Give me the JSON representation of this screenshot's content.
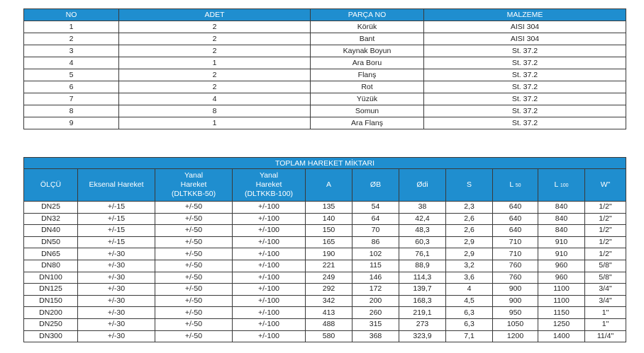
{
  "colors": {
    "header_bg": "#1f8ecf",
    "header_text": "#ffffff",
    "border": "#3a3a3a"
  },
  "parts_table": {
    "headers": [
      "NO",
      "ADET",
      "PARÇA NO",
      "MALZEME"
    ],
    "rows": [
      [
        "1",
        "2",
        "Körük",
        "AISI 304"
      ],
      [
        "2",
        "2",
        "Bant",
        "AISI 304"
      ],
      [
        "3",
        "2",
        "Kaynak Boyun",
        "St. 37.2"
      ],
      [
        "4",
        "1",
        "Ara Boru",
        "St. 37.2"
      ],
      [
        "5",
        "2",
        "Flanş",
        "St. 37.2"
      ],
      [
        "6",
        "2",
        "Rot",
        "St. 37.2"
      ],
      [
        "7",
        "4",
        "Yüzük",
        "St. 37.2"
      ],
      [
        "8",
        "8",
        "Somun",
        "St. 37.2"
      ],
      [
        "9",
        "1",
        "Ara Flanş",
        "St. 37.2"
      ]
    ]
  },
  "motion_table": {
    "title": "TOPLAM HAREKET MİKTARI",
    "headers": {
      "olcu": "ÖLÇÜ",
      "eksenal": "Eksenal Hareket",
      "yanal1_a": "Yanal",
      "yanal1_b": "Hareket",
      "yanal1_c": "(DLTKKB-50)",
      "yanal2_a": "Yanal",
      "yanal2_b": "Hareket",
      "yanal2_c": "(DLTKKB-100)",
      "a": "A",
      "b": "ØB",
      "odi": "Ødi",
      "s": "S",
      "l50_main": "L",
      "l50_sub": "50",
      "l100_main": "L",
      "l100_sub": "100",
      "w": "W\""
    },
    "rows": [
      [
        "DN25",
        "+/-15",
        "+/-50",
        "+/-100",
        "135",
        "54",
        "38",
        "2,3",
        "640",
        "840",
        "1/2\""
      ],
      [
        "DN32",
        "+/-15",
        "+/-50",
        "+/-100",
        "140",
        "64",
        "42,4",
        "2,6",
        "640",
        "840",
        "1/2\""
      ],
      [
        "DN40",
        "+/-15",
        "+/-50",
        "+/-100",
        "150",
        "70",
        "48,3",
        "2,6",
        "640",
        "840",
        "1/2\""
      ],
      [
        "DN50",
        "+/-15",
        "+/-50",
        "+/-100",
        "165",
        "86",
        "60,3",
        "2,9",
        "710",
        "910",
        "1/2\""
      ],
      [
        "DN65",
        "+/-30",
        "+/-50",
        "+/-100",
        "190",
        "102",
        "76,1",
        "2,9",
        "710",
        "910",
        "1/2\""
      ],
      [
        "DN80",
        "+/-30",
        "+/-50",
        "+/-100",
        "221",
        "115",
        "88,9",
        "3,2",
        "760",
        "960",
        "5/8\""
      ],
      [
        "DN100",
        "+/-30",
        "+/-50",
        "+/-100",
        "249",
        "146",
        "114,3",
        "3,6",
        "760",
        "960",
        "5/8\""
      ],
      [
        "DN125",
        "+/-30",
        "+/-50",
        "+/-100",
        "292",
        "172",
        "139,7",
        "4",
        "900",
        "1100",
        "3/4\""
      ],
      [
        "DN150",
        "+/-30",
        "+/-50",
        "+/-100",
        "342",
        "200",
        "168,3",
        "4,5",
        "900",
        "1100",
        "3/4\""
      ],
      [
        "DN200",
        "+/-30",
        "+/-50",
        "+/-100",
        "413",
        "260",
        "219,1",
        "6,3",
        "950",
        "1150",
        "1\""
      ],
      [
        "DN250",
        "+/-30",
        "+/-50",
        "+/-100",
        "488",
        "315",
        "273",
        "6,3",
        "1050",
        "1250",
        "1\""
      ],
      [
        "DN300",
        "+/-30",
        "+/-50",
        "+/-100",
        "580",
        "368",
        "323,9",
        "7,1",
        "1200",
        "1400",
        "11/4\""
      ]
    ]
  }
}
